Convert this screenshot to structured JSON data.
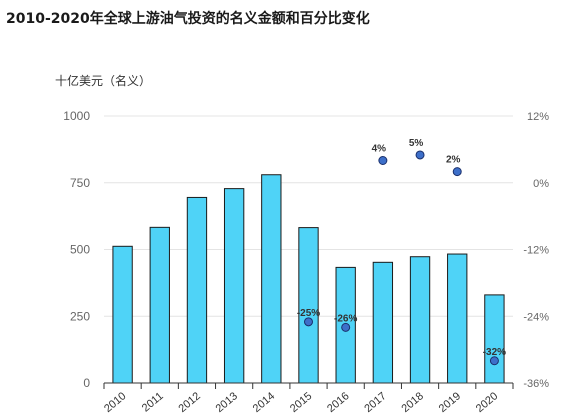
{
  "title": "2010-2020年全球上游油气投资的名义金额和百分比变化",
  "y_unit": "十亿美元（名义）",
  "colors": {
    "bar_fill": "#4fd3f7",
    "bar_stroke": "#1a1a1a",
    "dot_fill": "#3d6fc9",
    "dot_stroke": "#1a2f6b",
    "grid": "#e4e4e4",
    "axis": "#333333"
  },
  "chart_data": {
    "type": "bar",
    "title": "2010-2020年全球上游油气投资的名义金额和百分比变化",
    "ylabel": "十亿美元（名义）",
    "categories": [
      "2010",
      "2011",
      "2012",
      "2013",
      "2014",
      "2015",
      "2016",
      "2017",
      "2018",
      "2019",
      "2020"
    ],
    "values": [
      512,
      583,
      695,
      728,
      780,
      582,
      433,
      452,
      473,
      483,
      330
    ],
    "ylim": [
      0,
      1000
    ],
    "y_ticks": [
      0,
      250,
      500,
      750,
      1000
    ],
    "y2lim": [
      -36,
      12
    ],
    "y2_ticks": [
      "12%",
      "0%",
      "-12%",
      "-24%",
      "-36%"
    ],
    "y2_tick_values": [
      12,
      0,
      -12,
      -24,
      -36
    ],
    "pct_change": [
      {
        "category": "2015",
        "value": -25,
        "label": "-25%"
      },
      {
        "category": "2016",
        "value": -26,
        "label": "-26%"
      },
      {
        "category": "2017",
        "value": 4,
        "label": "4%"
      },
      {
        "category": "2018",
        "value": 5,
        "label": "5%"
      },
      {
        "category": "2019",
        "value": 2,
        "label": "2%"
      },
      {
        "category": "2020",
        "value": -32,
        "label": "-32%"
      }
    ],
    "grid": true
  }
}
